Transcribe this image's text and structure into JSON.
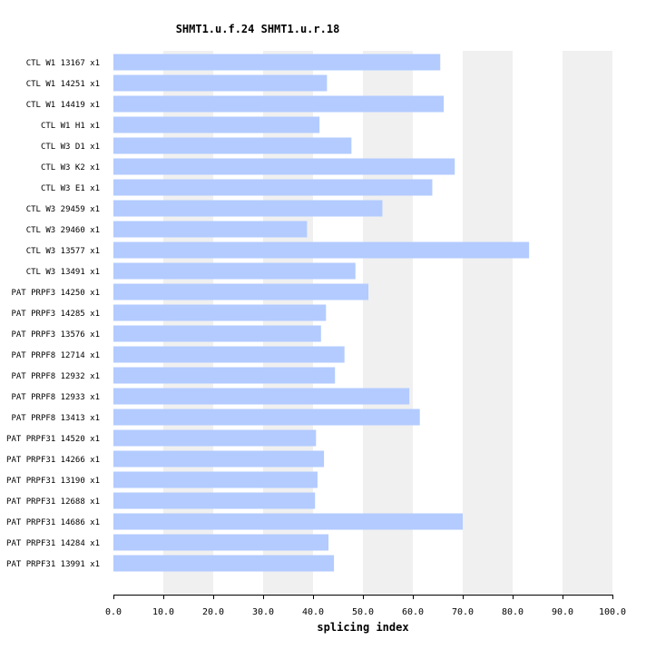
{
  "chart_data": {
    "type": "bar",
    "orientation": "horizontal",
    "title": "SHMT1.u.f.24  SHMT1.u.r.18",
    "xlabel": "splicing index",
    "ylabel": "",
    "xlim": [
      0,
      100
    ],
    "x_ticks": [
      "0.0",
      "10.0",
      "20.0",
      "30.0",
      "40.0",
      "50.0",
      "60.0",
      "70.0",
      "80.0",
      "90.0",
      "100.0"
    ],
    "background_bands": "alternating light gray every 10 units",
    "bar_color": "#b3cbff",
    "band_color": "#f0f0f0",
    "categories": [
      "CTL W1 13167 x1",
      "CTL W1 14251 x1",
      "CTL W1 14419 x1",
      "CTL W1 H1 x1",
      "CTL W3 D1 x1",
      "CTL W3 K2 x1",
      "CTL W3 E1 x1",
      "CTL W3 29459 x1",
      "CTL W3 29460 x1",
      "CTL W3 13577 x1",
      "CTL W3 13491 x1",
      "PAT PRPF3 14250 x1",
      "PAT PRPF3 14285 x1",
      "PAT PRPF3 13576 x1",
      "PAT PRPF8 12714 x1",
      "PAT PRPF8 12932 x1",
      "PAT PRPF8 12933 x1",
      "PAT PRPF8 13413 x1",
      "PAT PRPF31 14520 x1",
      "PAT PRPF31 14266 x1",
      "PAT PRPF31 13190 x1",
      "PAT PRPF31 12688 x1",
      "PAT PRPF31 14686 x1",
      "PAT PRPF31 14284 x1",
      "PAT PRPF31 13991 x1"
    ],
    "values": [
      65.5,
      42.8,
      66.2,
      41.3,
      47.7,
      68.4,
      63.9,
      53.9,
      38.8,
      83.3,
      48.5,
      51.1,
      42.6,
      41.6,
      46.3,
      44.4,
      59.3,
      61.4,
      40.6,
      42.2,
      40.9,
      40.4,
      70.0,
      43.1,
      44.2
    ]
  }
}
